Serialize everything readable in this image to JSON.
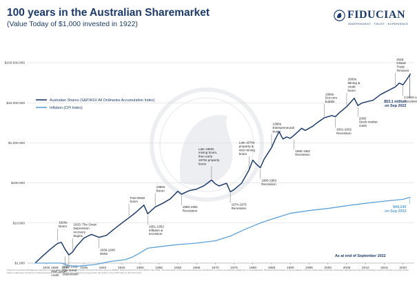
{
  "header": {
    "title": "100 years in the Australian Sharemarket",
    "subtitle": "(Value Today of $1,000 invested in 1922)"
  },
  "brand": {
    "name": "FIDUCIAN",
    "tagline": "INDEPENDENT · TRUST · EXPERIENCE",
    "color": "#1b3a6b"
  },
  "footer": {
    "as_at": "As at end of September 2022",
    "disclaimer": "Fiducian Investment Management Services Limited ABN 28 602 441 814 Australian Financial Services Licence 468211. Data provided from Sep 1922 to Sep 2022. The information in this document has been compiled from sources considered reliable but is not guaranteed. Historical Performance is not an indicator of future performance. Fiducian Investment Management Services (Fiducian) recommends that you seek advice before making any investment. Fiducian accepts no liability for any loss suffered by anyone who has acted on any information in this document."
  },
  "chart_data": {
    "type": "line",
    "y_scale": "log",
    "xlim": [
      1920,
      2023
    ],
    "ylim": [
      1000,
      100000000
    ],
    "y_ticks": [
      {
        "value": 1000,
        "label": "$1,000"
      },
      {
        "value": 10000,
        "label": "$10,000"
      },
      {
        "value": 100000,
        "label": "$100,000"
      },
      {
        "value": 1000000,
        "label": "$1,000,000"
      },
      {
        "value": 10000000,
        "label": "$10,000,000"
      },
      {
        "value": 100000000,
        "label": "$100,000,000"
      }
    ],
    "x_ticks": [
      1925,
      1930,
      1935,
      1940,
      1945,
      1950,
      1955,
      1960,
      1965,
      1970,
      1975,
      1980,
      1985,
      1990,
      1995,
      2000,
      2005,
      2010,
      2015,
      2020
    ],
    "series": [
      {
        "name": "Australian Shares (S&P/ASX All Ordinaries Accumulation Index)",
        "color": "#1b3a6b",
        "x": [
          1922,
          1924,
          1926,
          1928,
          1929,
          1930,
          1931,
          1932,
          1933,
          1935,
          1937,
          1939,
          1941,
          1943,
          1945,
          1947,
          1949,
          1951,
          1952,
          1954,
          1956,
          1958,
          1960,
          1961,
          1963,
          1965,
          1967,
          1969,
          1970,
          1971,
          1973,
          1974,
          1975,
          1977,
          1979,
          1980,
          1981,
          1982,
          1983,
          1985,
          1986,
          1987,
          1988,
          1989,
          1990,
          1991,
          1993,
          1994,
          1996,
          1997,
          1999,
          2001,
          2002,
          2003,
          2005,
          2007,
          2008,
          2009,
          2011,
          2012,
          2014,
          2016,
          2018,
          2019,
          2020,
          2021,
          2022
        ],
        "values": [
          1000,
          1500,
          2200,
          3100,
          3300,
          2200,
          1600,
          1900,
          2600,
          4200,
          5200,
          4400,
          4900,
          7000,
          9800,
          13500,
          19000,
          28000,
          17000,
          25000,
          31000,
          40000,
          62000,
          52000,
          64000,
          70000,
          85000,
          118000,
          95000,
          84000,
          98000,
          60000,
          68000,
          98000,
          210000,
          370000,
          290000,
          240000,
          390000,
          760000,
          1250000,
          1900000,
          1250000,
          1400000,
          1300000,
          1550000,
          2300000,
          2050000,
          2600000,
          3100000,
          4200000,
          4800000,
          4500000,
          5600000,
          8000000,
          13000000,
          8500000,
          9800000,
          11000000,
          11500000,
          16000000,
          20000000,
          25000000,
          31000000,
          28000000,
          38000000,
          53100000
        ]
      },
      {
        "name": "Inflation (CPI Index)",
        "color": "#5aa0d8",
        "x": [
          1922,
          1925,
          1929,
          1931,
          1933,
          1938,
          1942,
          1946,
          1948,
          1950,
          1952,
          1955,
          1960,
          1965,
          1970,
          1974,
          1978,
          1982,
          1985,
          1990,
          1995,
          2000,
          2005,
          2010,
          2015,
          2020,
          2022
        ],
        "values": [
          1000,
          1000,
          1000,
          870,
          830,
          920,
          1100,
          1220,
          1420,
          1800,
          2350,
          2550,
          2900,
          3150,
          3600,
          4700,
          7000,
          10000,
          12500,
          17500,
          20500,
          23000,
          27000,
          31000,
          35000,
          39000,
          44240
        ]
      }
    ],
    "end_labels": [
      {
        "series": 0,
        "text": "$53.1 million on Sep 2022"
      },
      {
        "series": 1,
        "text": "$44,240 on Sep 2022"
      }
    ],
    "events": [
      {
        "year": 1928,
        "value": 3300,
        "lines": [
          "1920s",
          "Boom"
        ],
        "pos": "above"
      },
      {
        "year": 1930,
        "value": 1600,
        "lines": [
          "1929",
          "Wall Street",
          "crash"
        ],
        "pos": "below",
        "text_year": 1926.3
      },
      {
        "year": 1931,
        "value": 1700,
        "lines": [
          "1929-1933",
          "The Great",
          "Depression"
        ],
        "pos": "below",
        "text_year": 1929.3
      },
      {
        "year": 1932,
        "value": 1900,
        "lines": [
          "1933: The Great",
          "Depression",
          "recovery",
          "begins"
        ],
        "pos": "above",
        "text_year": 1932.2
      },
      {
        "year": 1939,
        "value": 4400,
        "lines": [
          "1939-1945",
          "WW2"
        ],
        "pos": "below"
      },
      {
        "year": 1947,
        "value": 13500,
        "lines": [
          "Post WW2",
          "boom"
        ],
        "pos": "above"
      },
      {
        "year": 1952,
        "value": 17000,
        "lines": [
          "1951-1952",
          "Inflation &",
          "recession"
        ],
        "pos": "below"
      },
      {
        "year": 1954,
        "value": 25000,
        "lines": [
          "1950s",
          "Boom"
        ],
        "pos": "above"
      },
      {
        "year": 1961,
        "value": 52000,
        "lines": [
          "1960-1961",
          "Recession"
        ],
        "pos": "below"
      },
      {
        "year": 1969,
        "value": 118000,
        "lines": [
          "Late 1960s",
          "mining boom,",
          "then early",
          "1970s property",
          "boom"
        ],
        "pos": "above",
        "text_year": 1965.5
      },
      {
        "year": 1974,
        "value": 60000,
        "lines": [
          "1974-1975",
          "Recession"
        ],
        "pos": "below"
      },
      {
        "year": 1979,
        "value": 210000,
        "lines": [
          "Late 1970s",
          "property &",
          "mini mining",
          "boom"
        ],
        "pos": "above",
        "text_year": 1976.3
      },
      {
        "year": 1982,
        "value": 240000,
        "lines": [
          "1980-1982",
          "Recession"
        ],
        "pos": "below"
      },
      {
        "year": 1985,
        "value": 760000,
        "lines": [
          "1980s",
          "Entrepreneurial",
          "boom"
        ],
        "pos": "above"
      },
      {
        "year": 1991,
        "value": 1300000,
        "lines": [
          "1990-1991",
          "Recession"
        ],
        "pos": "below"
      },
      {
        "year": 1999,
        "value": 4200000,
        "lines": [
          "1990s",
          "Dot-com",
          "bubble"
        ],
        "pos": "above"
      },
      {
        "year": 2002,
        "value": 4500000,
        "lines": [
          "2001-2002",
          "Recession"
        ],
        "pos": "below"
      },
      {
        "year": 2005,
        "value": 8000000,
        "lines": [
          "2000s",
          "Mining &",
          "credit",
          "boom"
        ],
        "pos": "above"
      },
      {
        "year": 2008,
        "value": 8500000,
        "lines": [
          "2008",
          "Stock market",
          "crash"
        ],
        "pos": "below"
      },
      {
        "year": 2018,
        "value": 25000000,
        "lines": [
          "2018",
          "Global",
          "Trade",
          "Tensions"
        ],
        "pos": "above"
      },
      {
        "year": 2020,
        "value": 28000000,
        "lines": [
          "COVID-19",
          "Recession"
        ],
        "pos": "below"
      }
    ]
  }
}
